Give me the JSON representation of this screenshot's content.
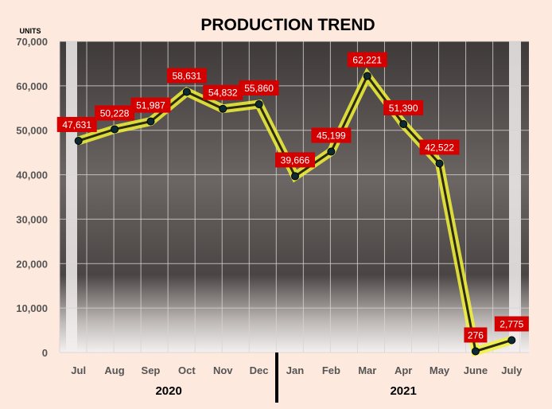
{
  "chart_data": {
    "type": "line",
    "title": "PRODUCTION TREND",
    "ylabel": "UNITS",
    "xlabel": "",
    "categories": [
      "Jul",
      "Aug",
      "Sep",
      "Oct",
      "Nov",
      "Dec",
      "Jan",
      "Feb",
      "Mar",
      "Apr",
      "May",
      "June",
      "July"
    ],
    "year_groups": [
      {
        "label": "2020",
        "from": 0,
        "to": 5
      },
      {
        "label": "2021",
        "from": 6,
        "to": 12
      }
    ],
    "series": [
      {
        "values": [
          47631,
          50228,
          51987,
          58631,
          54832,
          55860,
          39666,
          45199,
          62221,
          51390,
          42522,
          276,
          2775
        ],
        "data_labels": [
          "47,631",
          "50,228",
          "51,987",
          "58,631",
          "54,832",
          "55,860",
          "39,666",
          "45,199",
          "62,221",
          "51,390",
          "42,522",
          "276",
          "2,775"
        ]
      }
    ],
    "ylim": [
      0,
      70000
    ],
    "yticks": [
      0,
      10000,
      20000,
      30000,
      40000,
      50000,
      60000,
      70000
    ],
    "ytick_labels": [
      "0",
      "10,000",
      "20,000",
      "30,000",
      "40,000",
      "50,000",
      "60,000",
      "70,000"
    ],
    "grid": true,
    "colors": {
      "line": "#f2f23a",
      "marker": "#0d2a33",
      "label_bg": "#d40000",
      "label_text": "#ffffff",
      "background": "#fde9dd",
      "plot_bg": "#5a5452"
    }
  }
}
